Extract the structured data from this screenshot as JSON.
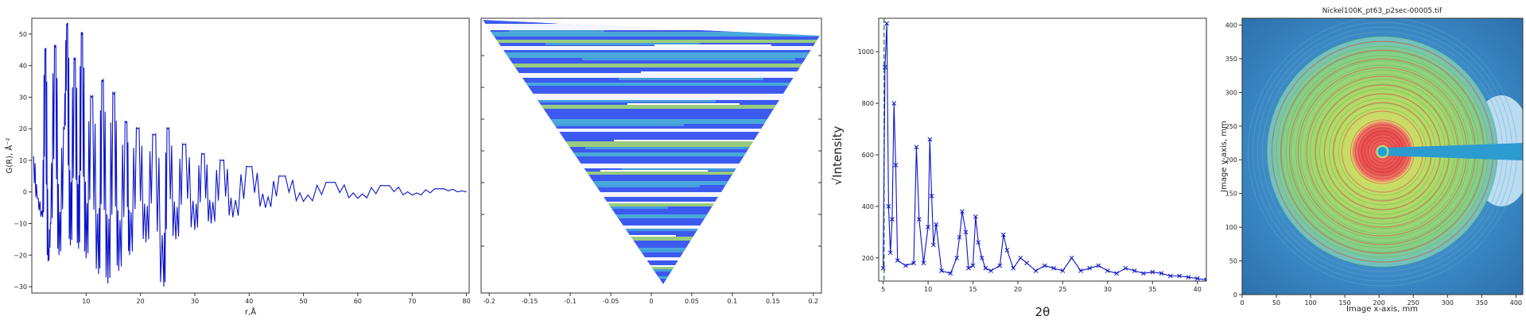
{
  "chart_data": [
    {
      "type": "line",
      "title": "",
      "xlabel": "r,Å",
      "ylabel": "G(R), Å⁻²",
      "xlim": [
        0,
        80.5
      ],
      "ylim": [
        -32,
        55
      ],
      "xticks": [
        10,
        20,
        30,
        40,
        50,
        60,
        70,
        80
      ],
      "yticks": [
        -30,
        -20,
        -10,
        0,
        10,
        20,
        30,
        40,
        50
      ],
      "color": "#0a14c8",
      "series": [
        {
          "name": "",
          "x": [
            0.2,
            1.0,
            2.0,
            2.5,
            3.0,
            3.5,
            4.3,
            5.0,
            6.0,
            6.5,
            7.1,
            7.9,
            8.6,
            9.2,
            10.0,
            11.0,
            12.3,
            13.0,
            14.0,
            15.1,
            16.0,
            17.4,
            18.0,
            19.5,
            21.0,
            22.5,
            24.3,
            25.0,
            26.5,
            28.0,
            30.0,
            31.5,
            33.0,
            35.0,
            37.0,
            40.0,
            43.0,
            46.0,
            50.0,
            55.0,
            60.0,
            65.0,
            70.0,
            75.0,
            80.0
          ],
          "y": [
            11,
            -2,
            -8,
            45,
            -22,
            -10,
            46,
            -20,
            20,
            53,
            -17,
            42,
            -18,
            50,
            -21,
            30,
            -26,
            35,
            -29,
            31,
            -25,
            22,
            -20,
            20,
            -16,
            18,
            -30,
            20,
            -15,
            15,
            -12,
            12,
            -10,
            10,
            -8,
            8,
            -5,
            5,
            -3,
            3,
            -2,
            2,
            -1,
            1,
            0
          ]
        }
      ]
    },
    {
      "type": "heatmap",
      "title": "",
      "xlabel": "",
      "ylabel": "",
      "xlim": [
        -0.21,
        0.21
      ],
      "xticks": [
        -0.2,
        -0.15,
        -0.1,
        -0.05,
        0,
        0.05,
        0.1,
        0.15,
        0.2
      ],
      "xtick_labels": [
        "-0.2",
        "-0.15",
        "-0.1",
        "-0.05",
        "0",
        "0.05",
        "0.1",
        "0.15",
        "0.2"
      ],
      "shape": "inverted-triangle",
      "colors": [
        "#3d5af0",
        "#4bb6d6",
        "#a8e06a",
        "#ffffff"
      ]
    },
    {
      "type": "line",
      "title": "",
      "xlabel": "2θ",
      "ylabel": "√Intensity",
      "xlim": [
        4.5,
        41
      ],
      "ylim": [
        110,
        1130
      ],
      "xticks": [
        5,
        10,
        15,
        20,
        25,
        30,
        35,
        40
      ],
      "yticks": [
        200,
        400,
        600,
        800,
        1000
      ],
      "color": "#0a14c8",
      "marker": "x",
      "reference_line_x": 5.1,
      "series": [
        {
          "name": "",
          "x": [
            5.0,
            5.2,
            5.4,
            5.6,
            5.8,
            6.0,
            6.2,
            6.4,
            6.6,
            7.5,
            8.4,
            8.7,
            9.0,
            9.5,
            10.0,
            10.2,
            10.4,
            10.6,
            10.9,
            11.5,
            12.5,
            13.2,
            13.5,
            13.8,
            14.2,
            14.5,
            15.0,
            15.3,
            15.6,
            16.0,
            16.4,
            17.0,
            18.0,
            18.4,
            18.8,
            19.5,
            20.3,
            21.0,
            22.0,
            23.0,
            24.0,
            25.0,
            26.0,
            27.0,
            28.0,
            29.0,
            30.0,
            31.0,
            32.0,
            33.0,
            34.0,
            35.0,
            36.0,
            37.0,
            38.0,
            39.0,
            40.0,
            41.0
          ],
          "y": [
            160,
            940,
            1110,
            400,
            220,
            350,
            800,
            560,
            190,
            170,
            180,
            630,
            350,
            180,
            320,
            660,
            440,
            250,
            330,
            150,
            140,
            200,
            280,
            380,
            300,
            160,
            170,
            360,
            260,
            200,
            160,
            150,
            170,
            290,
            230,
            160,
            200,
            180,
            150,
            170,
            160,
            150,
            200,
            150,
            160,
            170,
            150,
            140,
            160,
            150,
            140,
            145,
            140,
            130,
            130,
            125,
            120,
            115
          ]
        }
      ]
    },
    {
      "type": "heatmap",
      "title": "Nickel100K_pt63_p2sec-00005.tif",
      "xlabel": "Image x-axis, mm",
      "ylabel": "Image y-axis, mm",
      "xlim": [
        0,
        410
      ],
      "ylim": [
        0,
        410
      ],
      "xticks": [
        0,
        50,
        100,
        150,
        200,
        250,
        300,
        350,
        400
      ],
      "yticks": [
        0,
        50,
        100,
        150,
        200,
        250,
        300,
        350,
        400
      ],
      "beam_center": [
        205,
        212
      ],
      "colors": [
        "#2f7fc0",
        "#6ab0dc",
        "#9fd36b",
        "#e84a4a"
      ]
    }
  ]
}
